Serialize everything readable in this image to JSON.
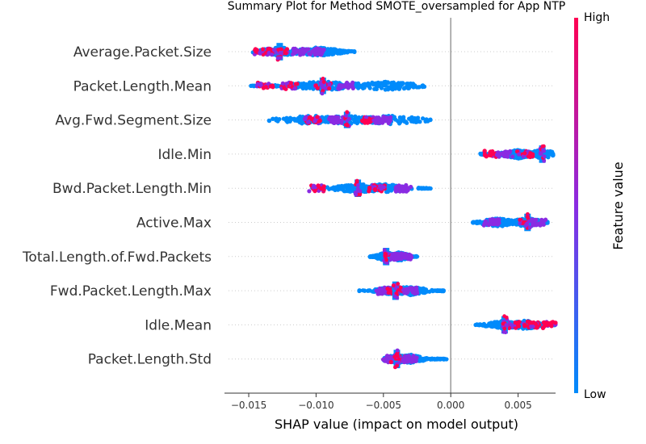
{
  "chart_data": {
    "type": "scatter",
    "subtype": "shap-beeswarm",
    "title": "Summary Plot for Method SMOTE_oversampled for App NTP",
    "xlabel": "SHAP value (impact on model output)",
    "xlim": [
      -0.0168,
      0.0088
    ],
    "xticks": [
      -0.015,
      -0.01,
      -0.005,
      0.0,
      0.005
    ],
    "xtick_labels": [
      "−0.015",
      "−0.010",
      "−0.005",
      "0.000",
      "0.005"
    ],
    "grid": false,
    "colorbar": {
      "label": "Feature value",
      "high_label": "High",
      "low_label": "Low",
      "high_color": "#ff0052",
      "mid_color": "#8a2be2",
      "low_color": "#008bfb"
    },
    "features": [
      {
        "name": "Average.Packet.Size",
        "min": -0.0148,
        "max": -0.007,
        "center": -0.0127,
        "spine_height": 0.9,
        "density_peaks": [
          -0.0127,
          -0.0098
        ],
        "clusters": [
          {
            "x": -0.014,
            "color": "high"
          },
          {
            "x": -0.0127,
            "color": "high"
          },
          {
            "x": -0.0112,
            "color": "mid"
          },
          {
            "x": -0.01,
            "color": "mid"
          }
        ]
      },
      {
        "name": "Packet.Length.Mean",
        "min": -0.015,
        "max": -0.0018,
        "center": -0.0095,
        "spine_height": 0.85,
        "density_peaks": [
          -0.0095,
          -0.005
        ],
        "clusters": [
          {
            "x": -0.0138,
            "color": "high"
          },
          {
            "x": -0.012,
            "color": "high"
          },
          {
            "x": -0.0095,
            "color": "high"
          },
          {
            "x": -0.0078,
            "color": "mid"
          }
        ]
      },
      {
        "name": "Avg.Fwd.Segment.Size",
        "min": -0.0135,
        "max": -0.0015,
        "center": -0.0077,
        "spine_height": 0.85,
        "density_peaks": [
          -0.0103,
          -0.0077,
          -0.0045
        ],
        "clusters": [
          {
            "x": -0.0103,
            "color": "high"
          },
          {
            "x": -0.0085,
            "color": "mid"
          },
          {
            "x": -0.006,
            "color": "high"
          },
          {
            "x": -0.005,
            "color": "mid"
          }
        ]
      },
      {
        "name": "Idle.Min",
        "min": 0.0022,
        "max": 0.0076,
        "center": 0.0068,
        "spine_height": 0.9,
        "density_peaks": [
          0.0068,
          0.005
        ],
        "clusters": [
          {
            "x": 0.003,
            "color": "high"
          },
          {
            "x": 0.004,
            "color": "mid"
          },
          {
            "x": 0.0055,
            "color": "high"
          }
        ]
      },
      {
        "name": "Bwd.Packet.Length.Min",
        "min": -0.0105,
        "max": -0.0015,
        "center": -0.0069,
        "spine_height": 0.9,
        "density_peaks": [
          -0.0069,
          -0.005
        ],
        "clusters": [
          {
            "x": -0.01,
            "color": "high"
          },
          {
            "x": -0.0055,
            "color": "high"
          },
          {
            "x": -0.0035,
            "color": "mid"
          }
        ]
      },
      {
        "name": "Active.Max",
        "min": 0.0015,
        "max": 0.0072,
        "center": 0.0057,
        "spine_height": 0.9,
        "density_peaks": [
          0.0057,
          0.0035
        ],
        "clusters": [
          {
            "x": 0.003,
            "color": "mid"
          },
          {
            "x": 0.0057,
            "color": "high"
          },
          {
            "x": 0.0065,
            "color": "mid"
          }
        ]
      },
      {
        "name": "Total.Length.of.Fwd.Packets",
        "min": -0.006,
        "max": -0.0025,
        "center": -0.0048,
        "spine_height": 0.9,
        "density_peaks": [
          -0.0048,
          -0.0038
        ],
        "clusters": [
          {
            "x": -0.0042,
            "color": "mid"
          },
          {
            "x": -0.0035,
            "color": "mid"
          }
        ]
      },
      {
        "name": "Fwd.Packet.Length.Max",
        "min": -0.0068,
        "max": -0.0005,
        "center": -0.0041,
        "spine_height": 0.95,
        "density_peaks": [
          -0.0041,
          -0.003
        ],
        "clusters": [
          {
            "x": -0.005,
            "color": "mid"
          },
          {
            "x": -0.0041,
            "color": "high"
          },
          {
            "x": -0.003,
            "color": "mid"
          }
        ]
      },
      {
        "name": "Idle.Mean",
        "min": 0.0018,
        "max": 0.0078,
        "center": 0.004,
        "spine_height": 0.9,
        "density_peaks": [
          0.004,
          0.0055
        ],
        "clusters": [
          {
            "x": 0.0045,
            "color": "high"
          },
          {
            "x": 0.006,
            "color": "high"
          },
          {
            "x": 0.0072,
            "color": "high"
          }
        ]
      },
      {
        "name": "Packet.Length.Std",
        "min": -0.005,
        "max": -0.0003,
        "center": -0.004,
        "spine_height": 0.95,
        "density_peaks": [
          -0.004,
          -0.003
        ],
        "clusters": [
          {
            "x": -0.0045,
            "color": "mid"
          },
          {
            "x": -0.004,
            "color": "high"
          },
          {
            "x": -0.003,
            "color": "mid"
          }
        ]
      }
    ]
  }
}
